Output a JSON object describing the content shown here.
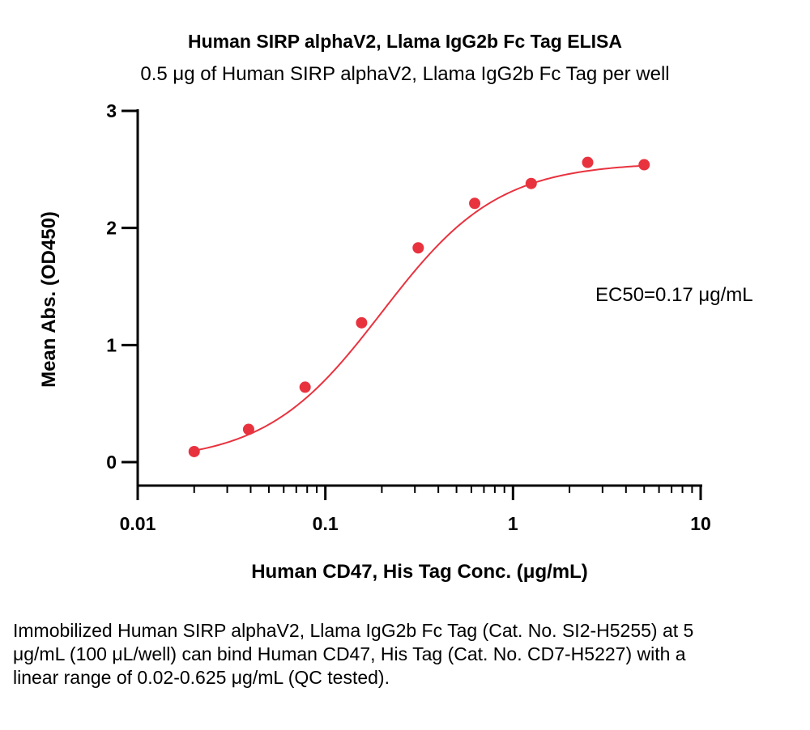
{
  "chart_data": {
    "type": "scatter",
    "title": "Human SIRP alphaV2, Llama IgG2b Fc Tag ELISA",
    "subtitle": "0.5 μg of Human SIRP alphaV2, Llama IgG2b Fc Tag per well",
    "xlabel": "Human CD47, His Tag Conc. (μg/mL)",
    "ylabel": "Mean Abs. (OD450)",
    "x_scale": "log",
    "xlim": [
      0.01,
      10
    ],
    "ylim": [
      0,
      3
    ],
    "x_ticks": [
      "0.01",
      "0.1",
      "1",
      "10"
    ],
    "y_ticks": [
      "0",
      "1",
      "2",
      "3"
    ],
    "grid": false,
    "series": [
      {
        "x": [
          0.02,
          0.039,
          0.078,
          0.156,
          0.3125,
          0.625,
          1.25,
          2.5,
          5
        ],
        "y": [
          0.09,
          0.28,
          0.64,
          1.19,
          1.83,
          2.21,
          2.38,
          2.56,
          2.54
        ],
        "fit": "4-parameter logistic",
        "color": "#e8333f"
      }
    ],
    "annotation": "EC50=0.17 μg/mL"
  },
  "caption": "Immobilized Human SIRP alphaV2, Llama IgG2b Fc Tag (Cat. No. SI2-H5255) at 5 μg/mL (100 μL/well) can bind Human CD47, His Tag (Cat. No. CD7-H5227) with a linear range of 0.02-0.625 μg/mL (QC tested)."
}
